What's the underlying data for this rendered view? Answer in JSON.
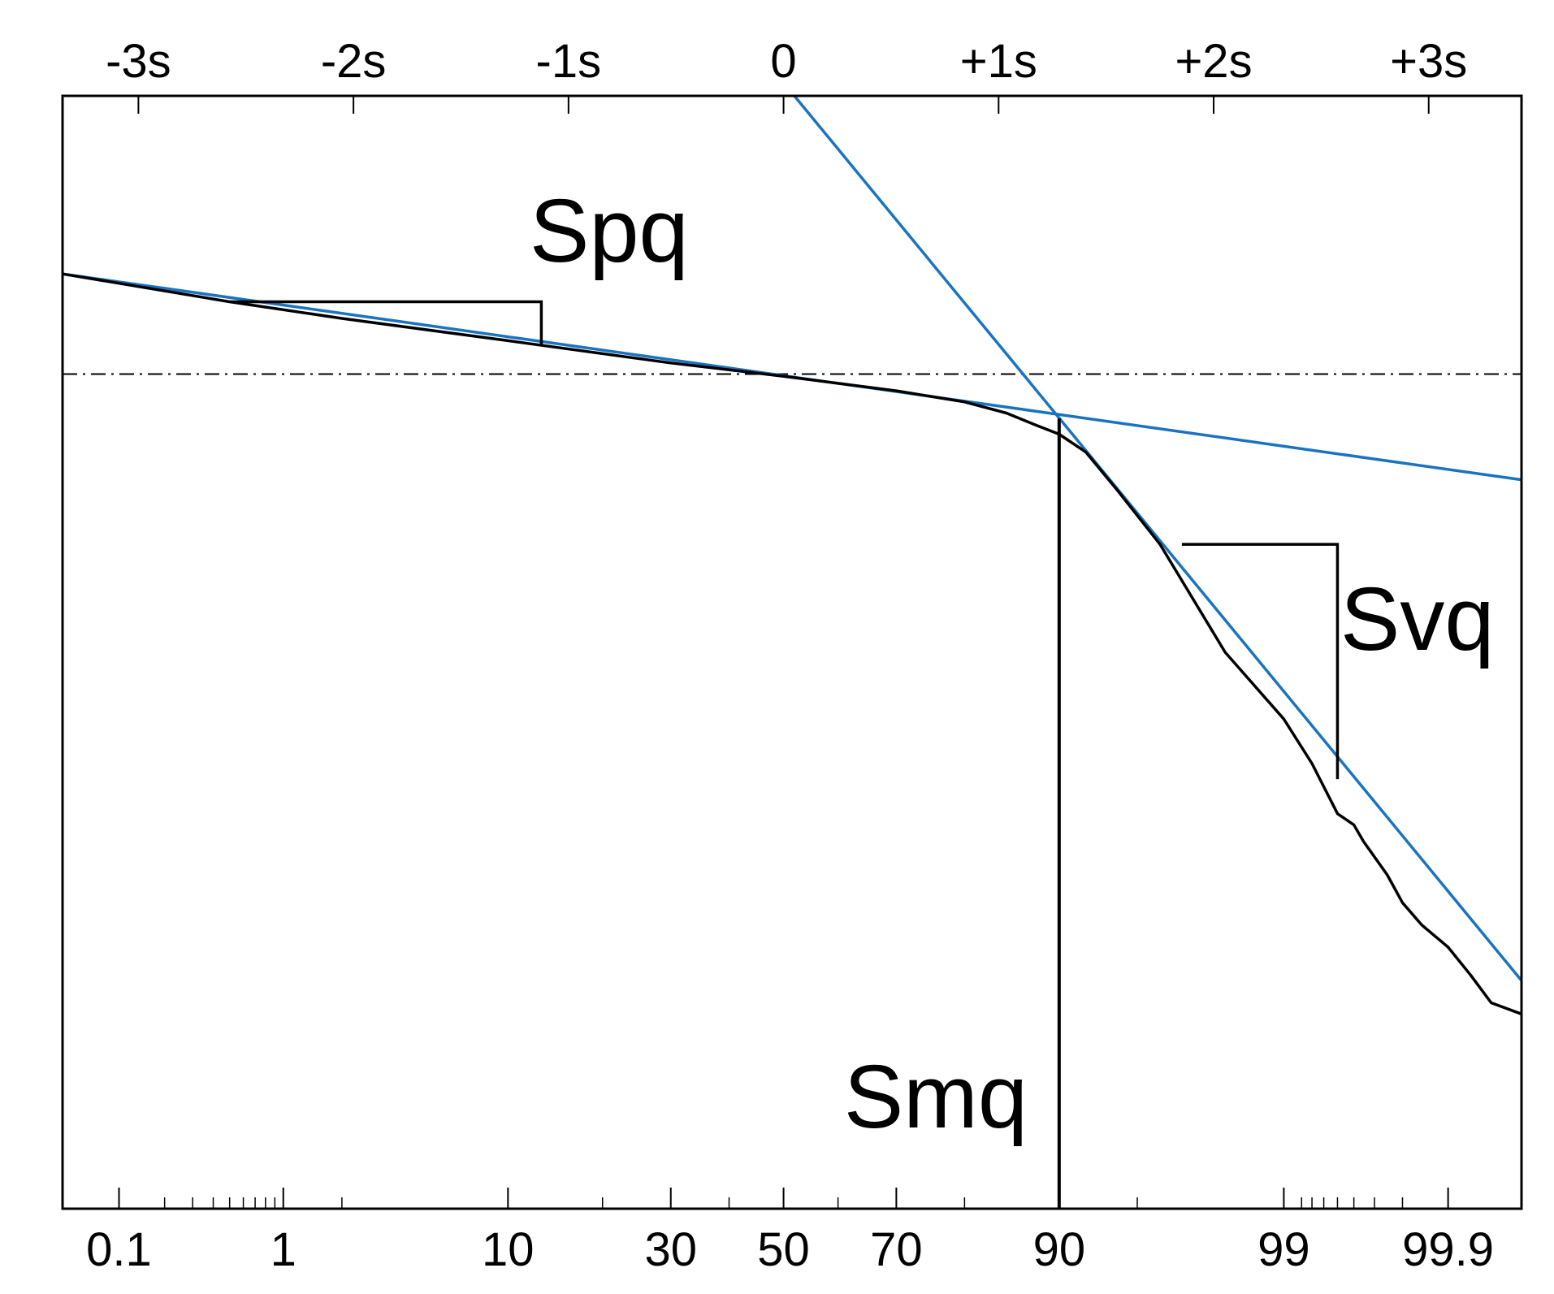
{
  "chart_data": {
    "type": "line",
    "title": "",
    "xlabel": "",
    "ylabel": "",
    "x_scale": "normal-probability",
    "x_range_percent": [
      0.04,
      99.97
    ],
    "y_range": [
      0,
      100
    ],
    "grid": false,
    "legend": "none",
    "top_axis": {
      "ticks": [
        {
          "label": "-3s",
          "z": -3
        },
        {
          "label": "-2s",
          "z": -2
        },
        {
          "label": "-1s",
          "z": -1
        },
        {
          "label": "0",
          "z": 0
        },
        {
          "label": "+1s",
          "z": 1
        },
        {
          "label": "+2s",
          "z": 2
        },
        {
          "label": "+3s",
          "z": 3
        }
      ]
    },
    "bottom_axis": {
      "labeled_ticks": [
        {
          "label": "0.1",
          "p": 0.1
        },
        {
          "label": "1",
          "p": 1
        },
        {
          "label": "10",
          "p": 10
        },
        {
          "label": "30",
          "p": 30
        },
        {
          "label": "50",
          "p": 50
        },
        {
          "label": "70",
          "p": 70
        },
        {
          "label": "90",
          "p": 90
        },
        {
          "label": "99",
          "p": 99
        },
        {
          "label": "99.9",
          "p": 99.9
        }
      ],
      "minor_ticks": [
        0.2,
        0.3,
        0.4,
        0.5,
        0.6,
        0.7,
        0.8,
        0.9,
        2,
        20,
        40,
        60,
        80,
        95,
        99.2,
        99.3,
        99.4,
        99.5,
        99.6,
        99.7,
        99.8
      ]
    },
    "reference_line": {
      "style": "dash-dot",
      "y": 75
    },
    "series": [
      {
        "style": "measured-curve",
        "color": "#000000",
        "points": [
          {
            "p": 0.04,
            "y": 84
          },
          {
            "p": 0.5,
            "y": 81.5
          },
          {
            "p": 2,
            "y": 80
          },
          {
            "p": 10,
            "y": 78
          },
          {
            "p": 30,
            "y": 76
          },
          {
            "p": 50,
            "y": 74.8
          },
          {
            "p": 70,
            "y": 73.5
          },
          {
            "p": 80,
            "y": 72.5
          },
          {
            "p": 85,
            "y": 71.5
          },
          {
            "p": 88,
            "y": 70.4
          },
          {
            "p": 90,
            "y": 69.6
          },
          {
            "p": 92,
            "y": 68
          },
          {
            "p": 94,
            "y": 64.5
          },
          {
            "p": 96,
            "y": 59.7
          },
          {
            "p": 98,
            "y": 50
          },
          {
            "p": 99,
            "y": 44
          },
          {
            "p": 99.3,
            "y": 40
          },
          {
            "p": 99.5,
            "y": 35.5
          },
          {
            "p": 99.6,
            "y": 34.5
          },
          {
            "p": 99.65,
            "y": 33
          },
          {
            "p": 99.75,
            "y": 30
          },
          {
            "p": 99.8,
            "y": 27.5
          },
          {
            "p": 99.85,
            "y": 25.5
          },
          {
            "p": 99.9,
            "y": 23.5
          },
          {
            "p": 99.93,
            "y": 21
          },
          {
            "p": 99.95,
            "y": 18.5
          },
          {
            "p": 99.97,
            "y": 17.5
          }
        ]
      },
      {
        "style": "fit-line-pore",
        "color": "#1a73c0",
        "points": [
          {
            "p": 0.04,
            "y": 84
          },
          {
            "p": 99.97,
            "y": 65.5
          }
        ]
      },
      {
        "style": "fit-line-vuggy",
        "color": "#1a73c0",
        "points": [
          {
            "p": 52,
            "y": 100
          },
          {
            "p": 99.97,
            "y": 20.5
          }
        ]
      }
    ],
    "annotations": [
      {
        "text": "Spq",
        "triangle": [
          {
            "p": 0.5,
            "y": 81.5
          },
          {
            "p": 13,
            "y": 81.5
          },
          {
            "p": 13,
            "y": 77.6
          }
        ]
      },
      {
        "text": "Svq",
        "triangle": [
          {
            "p": 96.8,
            "y": 59.7
          },
          {
            "p": 99.5,
            "y": 59.7
          },
          {
            "p": 99.5,
            "y": 38.6
          }
        ]
      },
      {
        "text": "Smq",
        "vertical_line": {
          "p": 90,
          "y_from": 0,
          "y_to": 71
        }
      }
    ]
  }
}
